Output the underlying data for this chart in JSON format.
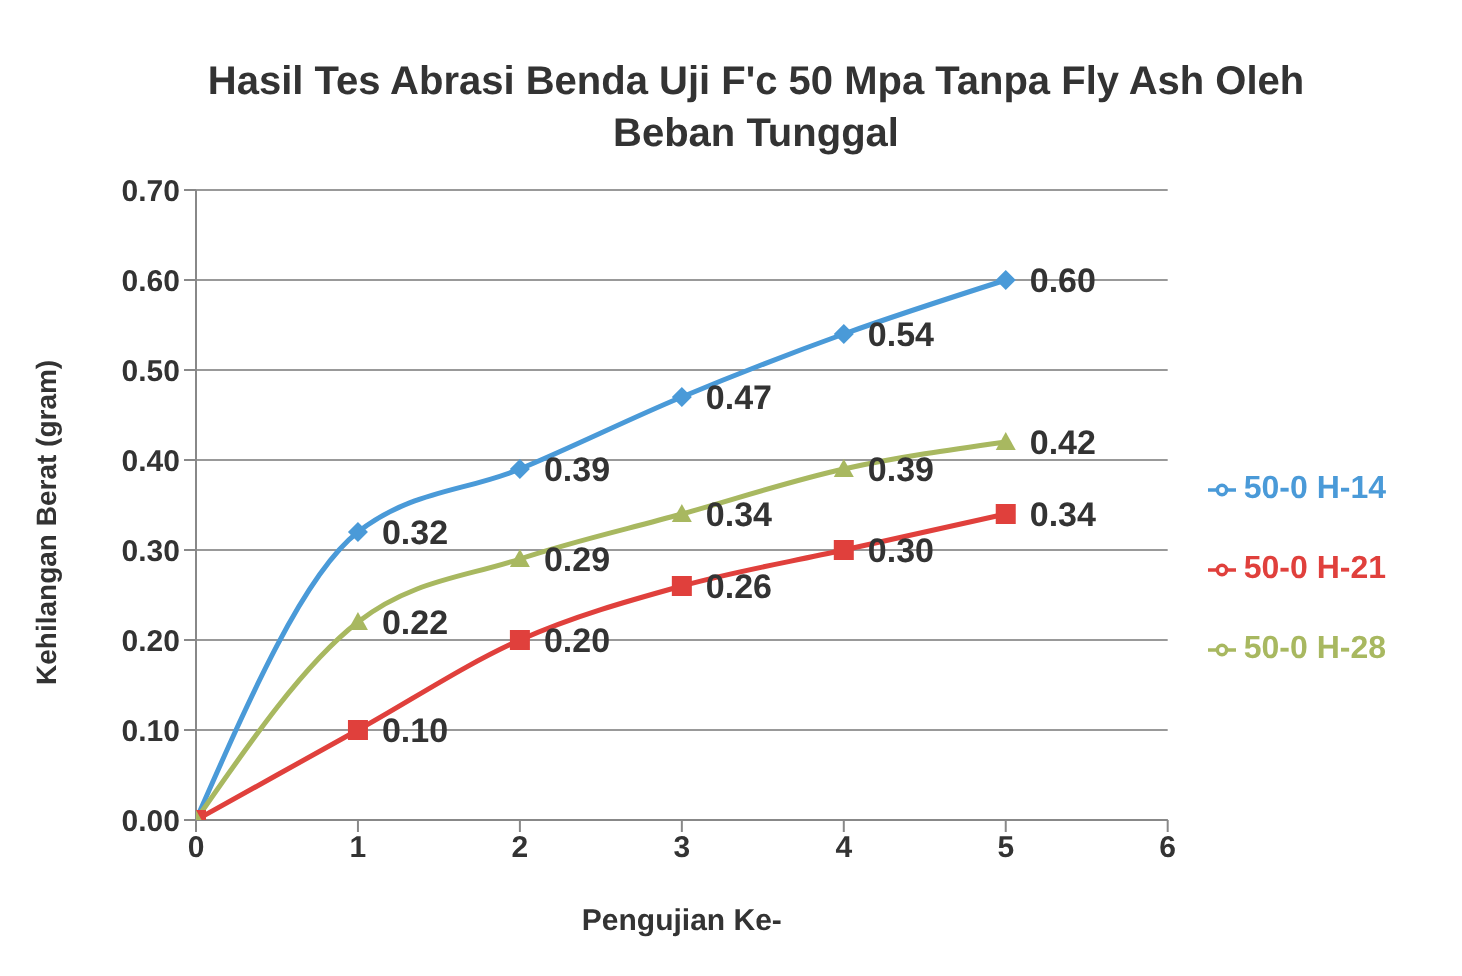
{
  "chart_data": {
    "type": "line",
    "title": "Hasil Tes Abrasi Benda Uji F'c 50 Mpa Tanpa Fly Ash Oleh Beban Tunggal",
    "xlabel": "Pengujian Ke-",
    "ylabel": "Kehilangan Berat (gram)",
    "x": [
      0,
      1,
      2,
      3,
      4,
      5
    ],
    "series": [
      {
        "name": "50-0 H-14",
        "color": "#4a9ad8",
        "marker": "diamond",
        "values": [
          0,
          0.32,
          0.39,
          0.47,
          0.54,
          0.6
        ],
        "value_labels": [
          null,
          "0.32",
          "0.39",
          "0.47",
          "0.54",
          "0.60"
        ]
      },
      {
        "name": "50-0 H-21",
        "color": "#e0403c",
        "marker": "square",
        "values": [
          0,
          0.1,
          0.2,
          0.26,
          0.3,
          0.34
        ],
        "value_labels": [
          null,
          "0.10",
          "0.20",
          "0.26",
          "0.30",
          "0.34"
        ]
      },
      {
        "name": "50-0 H-28",
        "color": "#a8b860",
        "marker": "triangle",
        "values": [
          0,
          0.22,
          0.29,
          0.34,
          0.39,
          0.42
        ],
        "value_labels": [
          null,
          "0.22",
          "0.29",
          "0.34",
          "0.39",
          "0.42"
        ]
      }
    ],
    "xlim": [
      0,
      6
    ],
    "xticks": [
      0,
      1,
      2,
      3,
      4,
      5,
      6
    ],
    "ylim": [
      0,
      0.7
    ],
    "yticks": [
      {
        "value": 0,
        "label": "0.00"
      },
      {
        "value": 0.1,
        "label": "0.10"
      },
      {
        "value": 0.2,
        "label": "0.20"
      },
      {
        "value": 0.3,
        "label": "0.30"
      },
      {
        "value": 0.4,
        "label": "0.40"
      },
      {
        "value": 0.5,
        "label": "0.50"
      },
      {
        "value": 0.6,
        "label": "0.60"
      },
      {
        "value": 0.7,
        "label": "0.70"
      }
    ],
    "grid": "y",
    "legend": "right",
    "line_style": "solid"
  }
}
